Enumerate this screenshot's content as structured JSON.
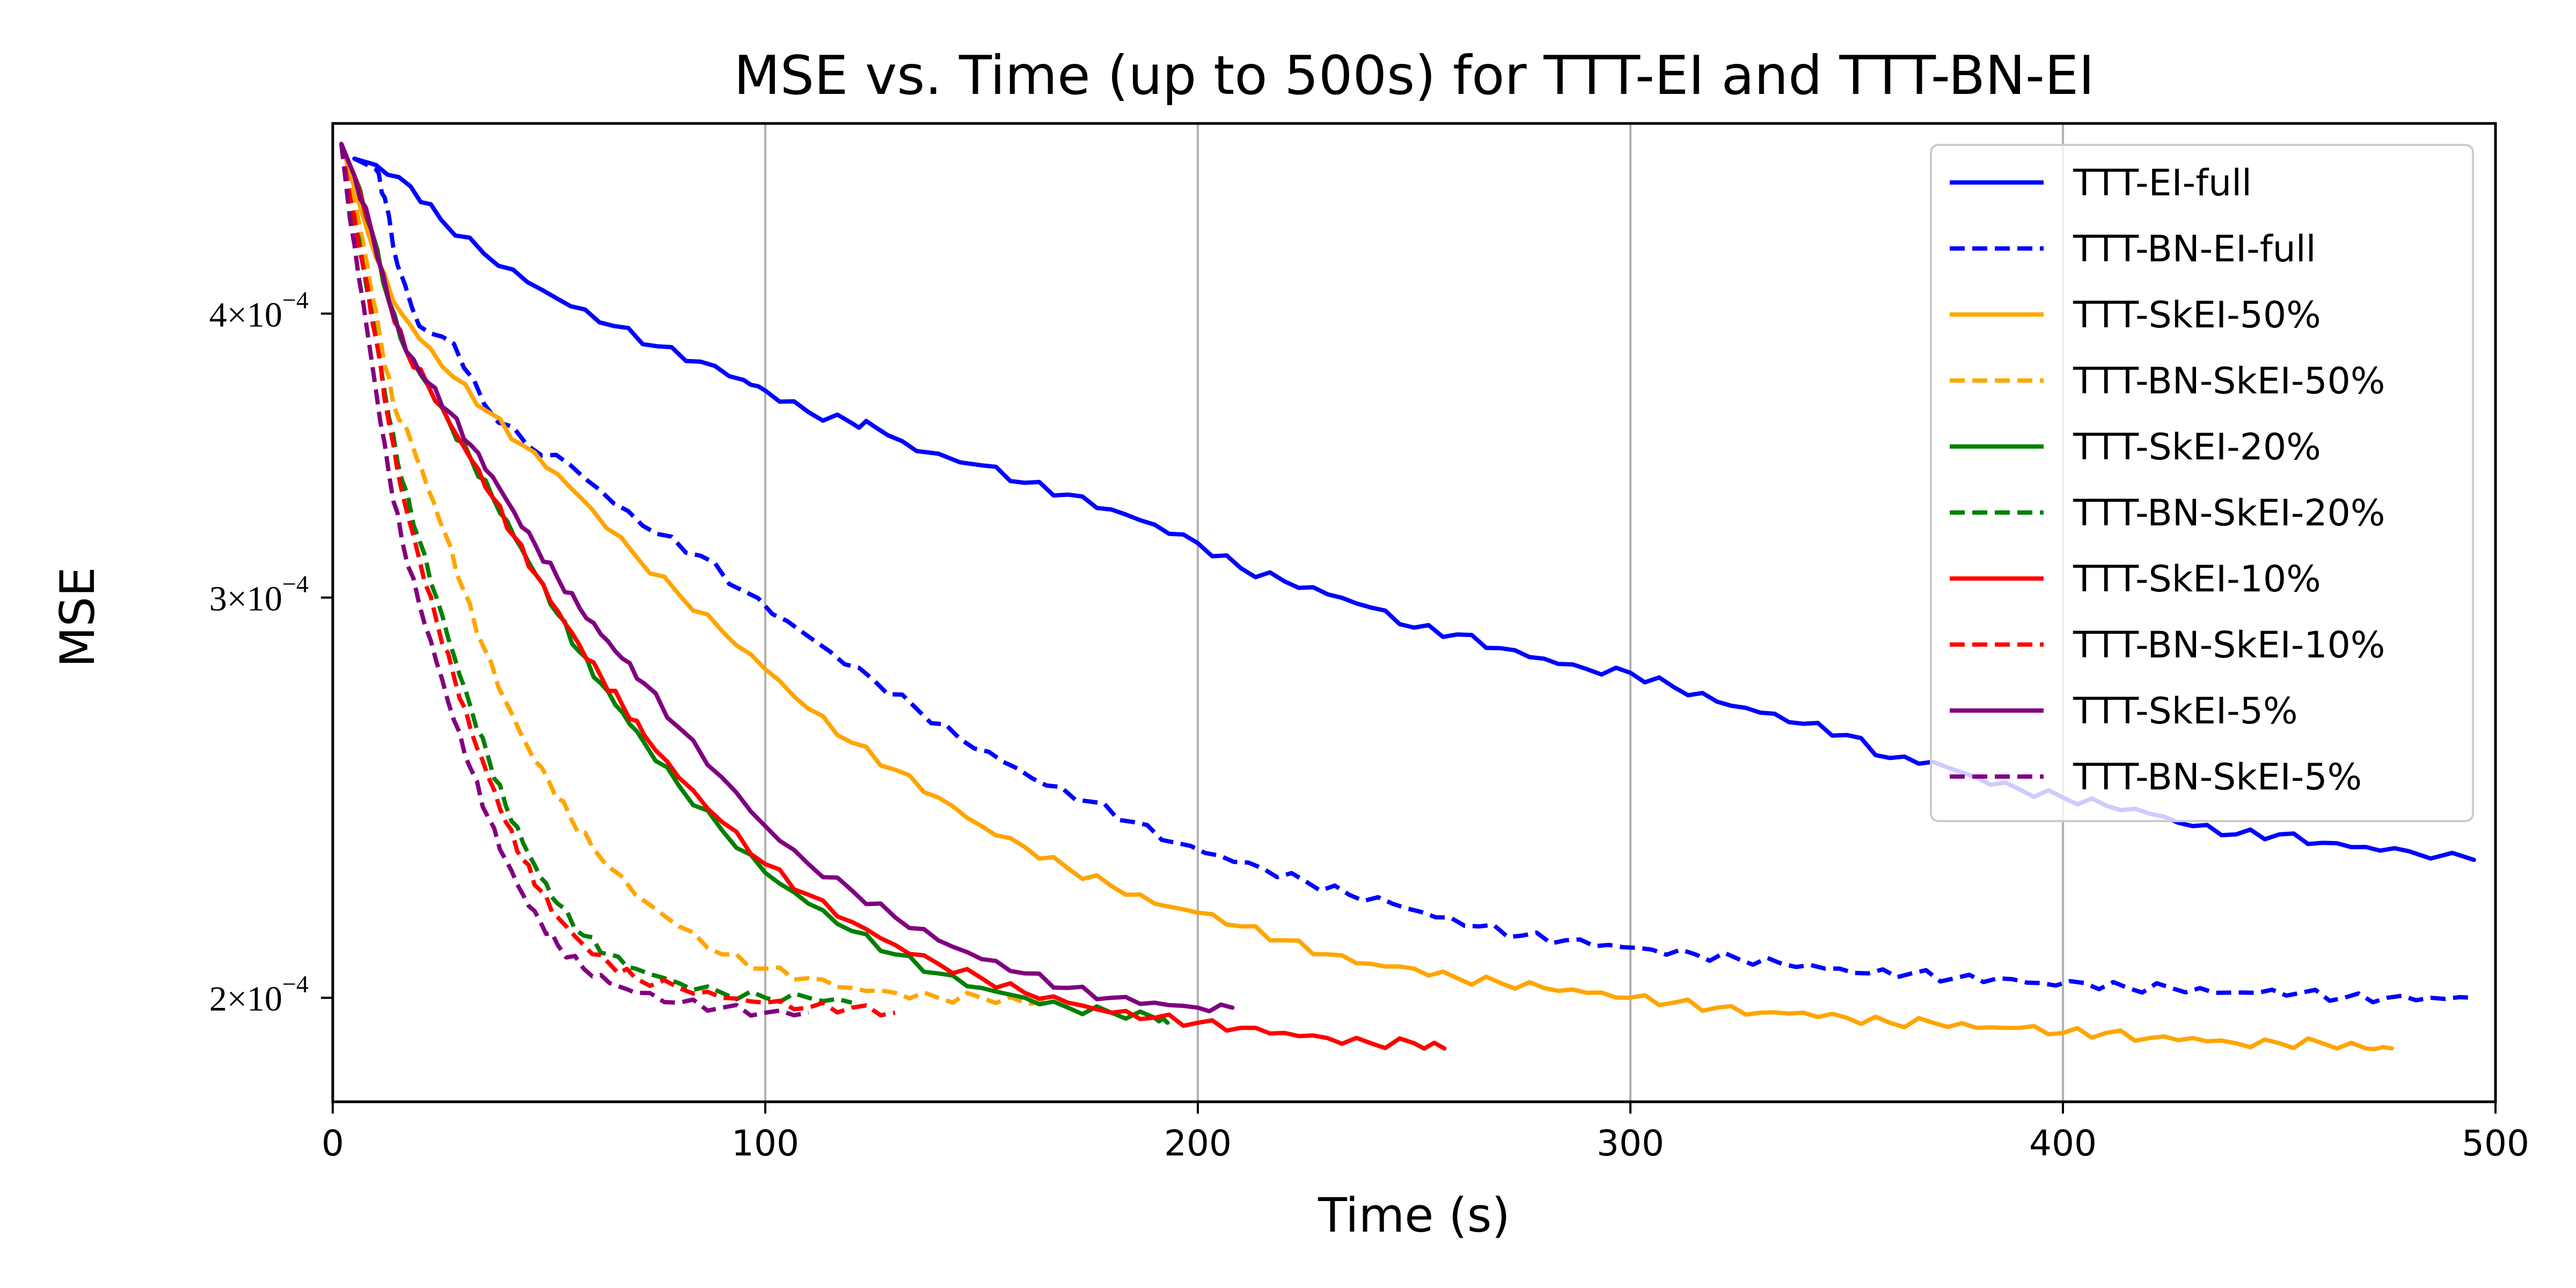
{
  "chart_data": {
    "type": "line",
    "title": "MSE vs. Time (up to 500s) for TTT-EI and TTT-BN-EI",
    "xlabel": "Time (s)",
    "ylabel": "MSE",
    "xlim": [
      0,
      500
    ],
    "ylim": [
      0.00018,
      0.000485
    ],
    "yscale": "log",
    "grid": "x",
    "legend_position": "upper right",
    "x_ticks": [
      "0",
      "100",
      "200",
      "300",
      "400",
      "500"
    ],
    "y_ticks": [
      {
        "mantissa": "2",
        "times": "×",
        "base": "10",
        "exponent": "−4",
        "value": 0.0002
      },
      {
        "mantissa": "3",
        "times": "×",
        "base": "10",
        "exponent": "−4",
        "value": 0.0003
      },
      {
        "mantissa": "4",
        "times": "×",
        "base": "10",
        "exponent": "−4",
        "value": 0.0004
      }
    ],
    "series": [
      {
        "name": "TTT-EI-full",
        "color": "#0000ff",
        "dash": "solid",
        "x": [
          5,
          10,
          18,
          25,
          35,
          45,
          55,
          65,
          75,
          85,
          95,
          100,
          110,
          120,
          125,
          135,
          150,
          160,
          170,
          180,
          190,
          200,
          210,
          220,
          230,
          240,
          250,
          260,
          270,
          280,
          290,
          300,
          310,
          320,
          330,
          340,
          350,
          360,
          370,
          380,
          390,
          400,
          410,
          420,
          430,
          440,
          450,
          460,
          470,
          480,
          495
        ],
        "y": [
          0.000468,
          0.000465,
          0.000455,
          0.00044,
          0.000425,
          0.000413,
          0.000403,
          0.000395,
          0.000387,
          0.000381,
          0.000374,
          0.00037,
          0.000362,
          0.000358,
          0.000357,
          0.000348,
          0.000343,
          0.000337,
          0.000333,
          0.000328,
          0.000323,
          0.000317,
          0.000309,
          0.000305,
          0.000301,
          0.000297,
          0.000291,
          0.000289,
          0.000285,
          0.000282,
          0.000279,
          0.000278,
          0.000274,
          0.00027,
          0.000267,
          0.000264,
          0.000261,
          0.000255,
          0.000254,
          0.00025,
          0.000247,
          0.000245,
          0.000243,
          0.000241,
          0.000238,
          0.000236,
          0.000236,
          0.000234,
          0.000233,
          0.000232,
          0.00023
        ]
      },
      {
        "name": "TTT-BN-EI-full",
        "color": "#0000ff",
        "dash": "dashed",
        "x": [
          5,
          10,
          12,
          15,
          20,
          28,
          35,
          45,
          55,
          65,
          75,
          85,
          95,
          105,
          115,
          125,
          135,
          145,
          155,
          165,
          175,
          185,
          195,
          205,
          215,
          225,
          235,
          245,
          255,
          265,
          275,
          285,
          295,
          305,
          315,
          325,
          335,
          345,
          355,
          365,
          375,
          385,
          395,
          405,
          415,
          425,
          435,
          445,
          455,
          465,
          475,
          485,
          495
        ],
        "y": [
          0.000468,
          0.000463,
          0.00045,
          0.00042,
          0.000395,
          0.000388,
          0.000365,
          0.00035,
          0.000343,
          0.00033,
          0.00032,
          0.000313,
          0.000302,
          0.000293,
          0.000284,
          0.000276,
          0.000268,
          0.00026,
          0.000254,
          0.000248,
          0.000244,
          0.000239,
          0.000234,
          0.000231,
          0.000228,
          0.000225,
          0.000222,
          0.00022,
          0.000217,
          0.000215,
          0.000213,
          0.000212,
          0.000211,
          0.00021,
          0.000209,
          0.000208,
          0.000207,
          0.000206,
          0.000205,
          0.000205,
          0.000204,
          0.000204,
          0.000203,
          0.000203,
          0.000202,
          0.000202,
          0.000201,
          0.000201,
          0.000201,
          0.0002,
          0.0002,
          0.0002,
          0.0002
        ]
      },
      {
        "name": "TTT-SkEI-50%",
        "color": "#ffa500",
        "dash": "solid",
        "x": [
          2,
          8,
          14,
          20,
          28,
          36,
          44,
          52,
          60,
          70,
          80,
          90,
          100,
          110,
          120,
          130,
          140,
          150,
          160,
          170,
          180,
          190,
          200,
          210,
          220,
          230,
          240,
          250,
          260,
          270,
          280,
          290,
          300,
          310,
          320,
          330,
          340,
          350,
          360,
          370,
          380,
          390,
          400,
          410,
          420,
          430,
          440,
          450,
          460,
          470,
          476
        ],
        "y": [
          0.000475,
          0.000435,
          0.000405,
          0.00039,
          0.000375,
          0.000362,
          0.00035,
          0.00034,
          0.000328,
          0.000313,
          0.000301,
          0.00029,
          0.000279,
          0.000268,
          0.000259,
          0.000252,
          0.000245,
          0.000238,
          0.000233,
          0.000228,
          0.000224,
          0.00022,
          0.000218,
          0.000215,
          0.000212,
          0.000209,
          0.000207,
          0.000206,
          0.000204,
          0.000203,
          0.000202,
          0.000201,
          0.0002,
          0.000199,
          0.000198,
          0.000197,
          0.000197,
          0.000196,
          0.000195,
          0.000195,
          0.000194,
          0.000194,
          0.000193,
          0.000193,
          0.000192,
          0.000192,
          0.000191,
          0.000191,
          0.000191,
          0.00019,
          0.00019
        ]
      },
      {
        "name": "TTT-BN-SkEI-50%",
        "color": "#ffa500",
        "dash": "dashed",
        "x": [
          2,
          5,
          8,
          11,
          14,
          18,
          22,
          26,
          30,
          35,
          40,
          45,
          50,
          55,
          60,
          70,
          80,
          90,
          100,
          110,
          120,
          130,
          140,
          150,
          160,
          165
        ],
        "y": [
          0.000475,
          0.00045,
          0.00042,
          0.00039,
          0.000365,
          0.000352,
          0.000335,
          0.00032,
          0.000303,
          0.000285,
          0.00027,
          0.000258,
          0.000249,
          0.00024,
          0.000233,
          0.000222,
          0.000215,
          0.000209,
          0.000206,
          0.000204,
          0.000202,
          0.000201,
          0.0002,
          0.0002,
          0.000199,
          0.000199
        ]
      },
      {
        "name": "TTT-SkEI-20%",
        "color": "#008000",
        "dash": "solid",
        "x": [
          2,
          5,
          9,
          13,
          17,
          22,
          27,
          32,
          37,
          42,
          47,
          52,
          57,
          62,
          67,
          72,
          80,
          90,
          100,
          110,
          120,
          130,
          140,
          150,
          160,
          170,
          180,
          190,
          193
        ],
        "y": [
          0.000475,
          0.00046,
          0.000435,
          0.000405,
          0.000385,
          0.000372,
          0.000358,
          0.000345,
          0.000332,
          0.000319,
          0.000307,
          0.000295,
          0.000284,
          0.000275,
          0.000267,
          0.000259,
          0.000248,
          0.000237,
          0.000227,
          0.00022,
          0.000214,
          0.000209,
          0.000205,
          0.000202,
          0.0002,
          0.000198,
          0.000197,
          0.000196,
          0.000195
        ]
      },
      {
        "name": "TTT-BN-SkEI-20%",
        "color": "#008000",
        "dash": "dashed",
        "x": [
          2,
          4,
          7,
          10,
          13,
          16,
          20,
          24,
          28,
          32,
          36,
          40,
          44,
          48,
          52,
          58,
          64,
          70,
          80,
          90,
          100,
          110,
          120
        ],
        "y": [
          0.000475,
          0.00045,
          0.00042,
          0.00039,
          0.00036,
          0.000338,
          0.000318,
          0.0003,
          0.000283,
          0.000268,
          0.000255,
          0.000243,
          0.000234,
          0.000226,
          0.00022,
          0.000213,
          0.000209,
          0.000206,
          0.000203,
          0.000201,
          0.0002,
          0.0002,
          0.000199
        ]
      },
      {
        "name": "TTT-SkEI-10%",
        "color": "#ff0000",
        "dash": "solid",
        "x": [
          2,
          5,
          9,
          13,
          17,
          22,
          27,
          32,
          37,
          42,
          47,
          52,
          57,
          62,
          67,
          72,
          80,
          90,
          100,
          110,
          120,
          130,
          140,
          150,
          160,
          170,
          180,
          190,
          200,
          210,
          220,
          230,
          240,
          250,
          257
        ],
        "y": [
          0.000475,
          0.00046,
          0.000435,
          0.000405,
          0.000385,
          0.000372,
          0.000358,
          0.000345,
          0.000332,
          0.000319,
          0.000307,
          0.000296,
          0.000286,
          0.000277,
          0.000269,
          0.000261,
          0.00025,
          0.000239,
          0.000229,
          0.000222,
          0.000216,
          0.000211,
          0.000207,
          0.000204,
          0.000201,
          0.000199,
          0.000197,
          0.000196,
          0.000195,
          0.000194,
          0.000193,
          0.000192,
          0.000191,
          0.000191,
          0.00019
        ]
      },
      {
        "name": "TTT-BN-SkEI-10%",
        "color": "#ff0000",
        "dash": "dashed",
        "x": [
          2,
          4,
          7,
          10,
          13,
          16,
          20,
          24,
          28,
          32,
          36,
          40,
          44,
          48,
          52,
          58,
          64,
          70,
          80,
          90,
          100,
          110,
          120,
          130
        ],
        "y": [
          0.000475,
          0.00045,
          0.00042,
          0.00039,
          0.000358,
          0.000334,
          0.000312,
          0.000293,
          0.000277,
          0.000262,
          0.00025,
          0.000239,
          0.00023,
          0.000223,
          0.000217,
          0.000211,
          0.000207,
          0.000204,
          0.000202,
          0.0002,
          0.000199,
          0.000198,
          0.000198,
          0.000197
        ]
      },
      {
        "name": "TTT-SkEI-5%",
        "color": "#800080",
        "dash": "solid",
        "x": [
          2,
          5,
          9,
          13,
          17,
          22,
          27,
          32,
          37,
          42,
          47,
          52,
          57,
          62,
          67,
          72,
          80,
          90,
          100,
          110,
          120,
          130,
          140,
          150,
          160,
          170,
          180,
          190,
          200,
          208
        ],
        "y": [
          0.000475,
          0.00046,
          0.000435,
          0.000405,
          0.000385,
          0.000373,
          0.000362,
          0.00035,
          0.000339,
          0.000327,
          0.000316,
          0.000306,
          0.000297,
          0.000289,
          0.000282,
          0.000275,
          0.000263,
          0.00025,
          0.000238,
          0.000229,
          0.000223,
          0.000217,
          0.000212,
          0.000208,
          0.000205,
          0.000202,
          0.0002,
          0.000199,
          0.000198,
          0.000198
        ]
      },
      {
        "name": "TTT-BN-SkEI-5%",
        "color": "#800080",
        "dash": "dashed",
        "x": [
          2,
          4,
          7,
          10,
          13,
          16,
          20,
          24,
          28,
          32,
          36,
          40,
          44,
          48,
          52,
          58,
          64,
          70,
          80,
          90,
          100,
          110
        ],
        "y": [
          0.000475,
          0.00044,
          0.000405,
          0.00037,
          0.00034,
          0.000318,
          0.000298,
          0.000281,
          0.000265,
          0.000252,
          0.00024,
          0.00023,
          0.000222,
          0.000216,
          0.000211,
          0.000206,
          0.000203,
          0.000201,
          0.000199,
          0.000198,
          0.000197,
          0.000197
        ]
      }
    ]
  }
}
